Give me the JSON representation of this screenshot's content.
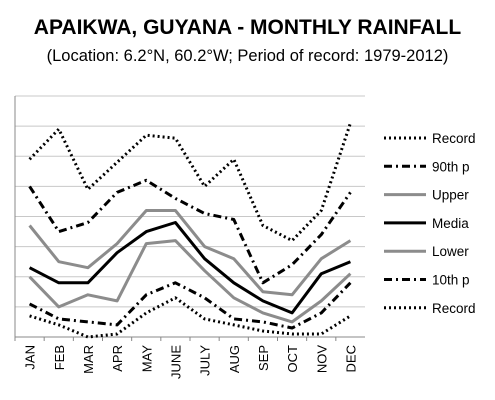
{
  "chart_data": {
    "type": "line",
    "title": "APAIKWA, GUYANA - MONTHLY RAINFALL",
    "subtitle": "(Location: 6.2°N, 60.2°W; Period of record: 1979-2012)",
    "xlabel": "",
    "ylabel": "",
    "categories": [
      "JAN",
      "FEB",
      "MAR",
      "APR",
      "MAY",
      "JUNE",
      "JULY",
      "AUG",
      "SEP",
      "OCT",
      "NOV",
      "DEC"
    ],
    "ylim": [
      0,
      8
    ],
    "grid": true,
    "legend_position": "right",
    "series": [
      {
        "name": "Record",
        "style": "dotted",
        "color": "#000000",
        "values": [
          5.9,
          6.9,
          4.9,
          5.8,
          6.7,
          6.6,
          5.0,
          5.9,
          3.7,
          3.2,
          4.2,
          7.1
        ]
      },
      {
        "name": "90th p",
        "style": "dashdot",
        "color": "#000000",
        "values": [
          5.0,
          3.5,
          3.8,
          4.8,
          5.2,
          4.6,
          4.1,
          3.9,
          1.8,
          2.4,
          3.4,
          4.8
        ]
      },
      {
        "name": "Upper",
        "style": "solid",
        "color": "#8c8c8c",
        "values": [
          3.7,
          2.5,
          2.3,
          3.1,
          4.2,
          4.2,
          3.0,
          2.6,
          1.5,
          1.4,
          2.6,
          3.2
        ]
      },
      {
        "name": "Media",
        "style": "solid",
        "color": "#000000",
        "values": [
          2.3,
          1.8,
          1.8,
          2.8,
          3.5,
          3.8,
          2.6,
          1.8,
          1.2,
          0.8,
          2.1,
          2.5
        ]
      },
      {
        "name": "Lower",
        "style": "solid",
        "color": "#8c8c8c",
        "values": [
          2.0,
          1.0,
          1.4,
          1.2,
          3.1,
          3.2,
          2.2,
          1.3,
          0.8,
          0.5,
          1.2,
          2.1
        ]
      },
      {
        "name": "10th p",
        "style": "dashdot",
        "color": "#000000",
        "values": [
          1.1,
          0.6,
          0.5,
          0.4,
          1.4,
          1.8,
          1.3,
          0.6,
          0.5,
          0.3,
          0.8,
          1.8
        ]
      },
      {
        "name": "Record",
        "style": "dotted",
        "color": "#000000",
        "values": [
          0.7,
          0.4,
          0.0,
          0.1,
          0.8,
          1.3,
          0.6,
          0.4,
          0.2,
          0.1,
          0.1,
          0.7
        ]
      }
    ]
  }
}
